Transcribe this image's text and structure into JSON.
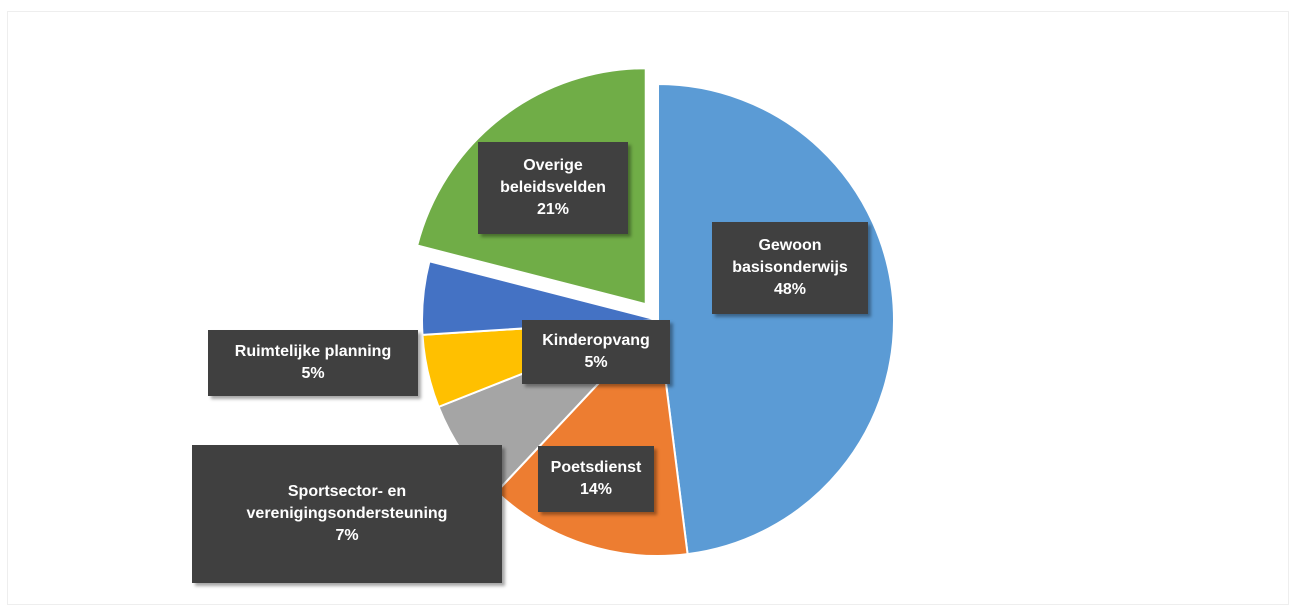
{
  "chart_data": {
    "type": "pie",
    "categories": [
      "Gewoon basisonderwijs",
      "Poetsdienst",
      "Sportsector- en verenigingsondersteuning",
      "Ruimtelijke planning",
      "Kinderopvang",
      "Overige beleidsvelden"
    ],
    "values": [
      48,
      14,
      7,
      5,
      5,
      21
    ],
    "value_labels": [
      "48%",
      "14%",
      "7%",
      "5%",
      "5%",
      "21%"
    ],
    "colors": [
      "#5b9bd5",
      "#ed7d31",
      "#a5a5a5",
      "#ffc000",
      "#4472c4",
      "#70ad47"
    ],
    "exploded": [
      5
    ]
  }
}
